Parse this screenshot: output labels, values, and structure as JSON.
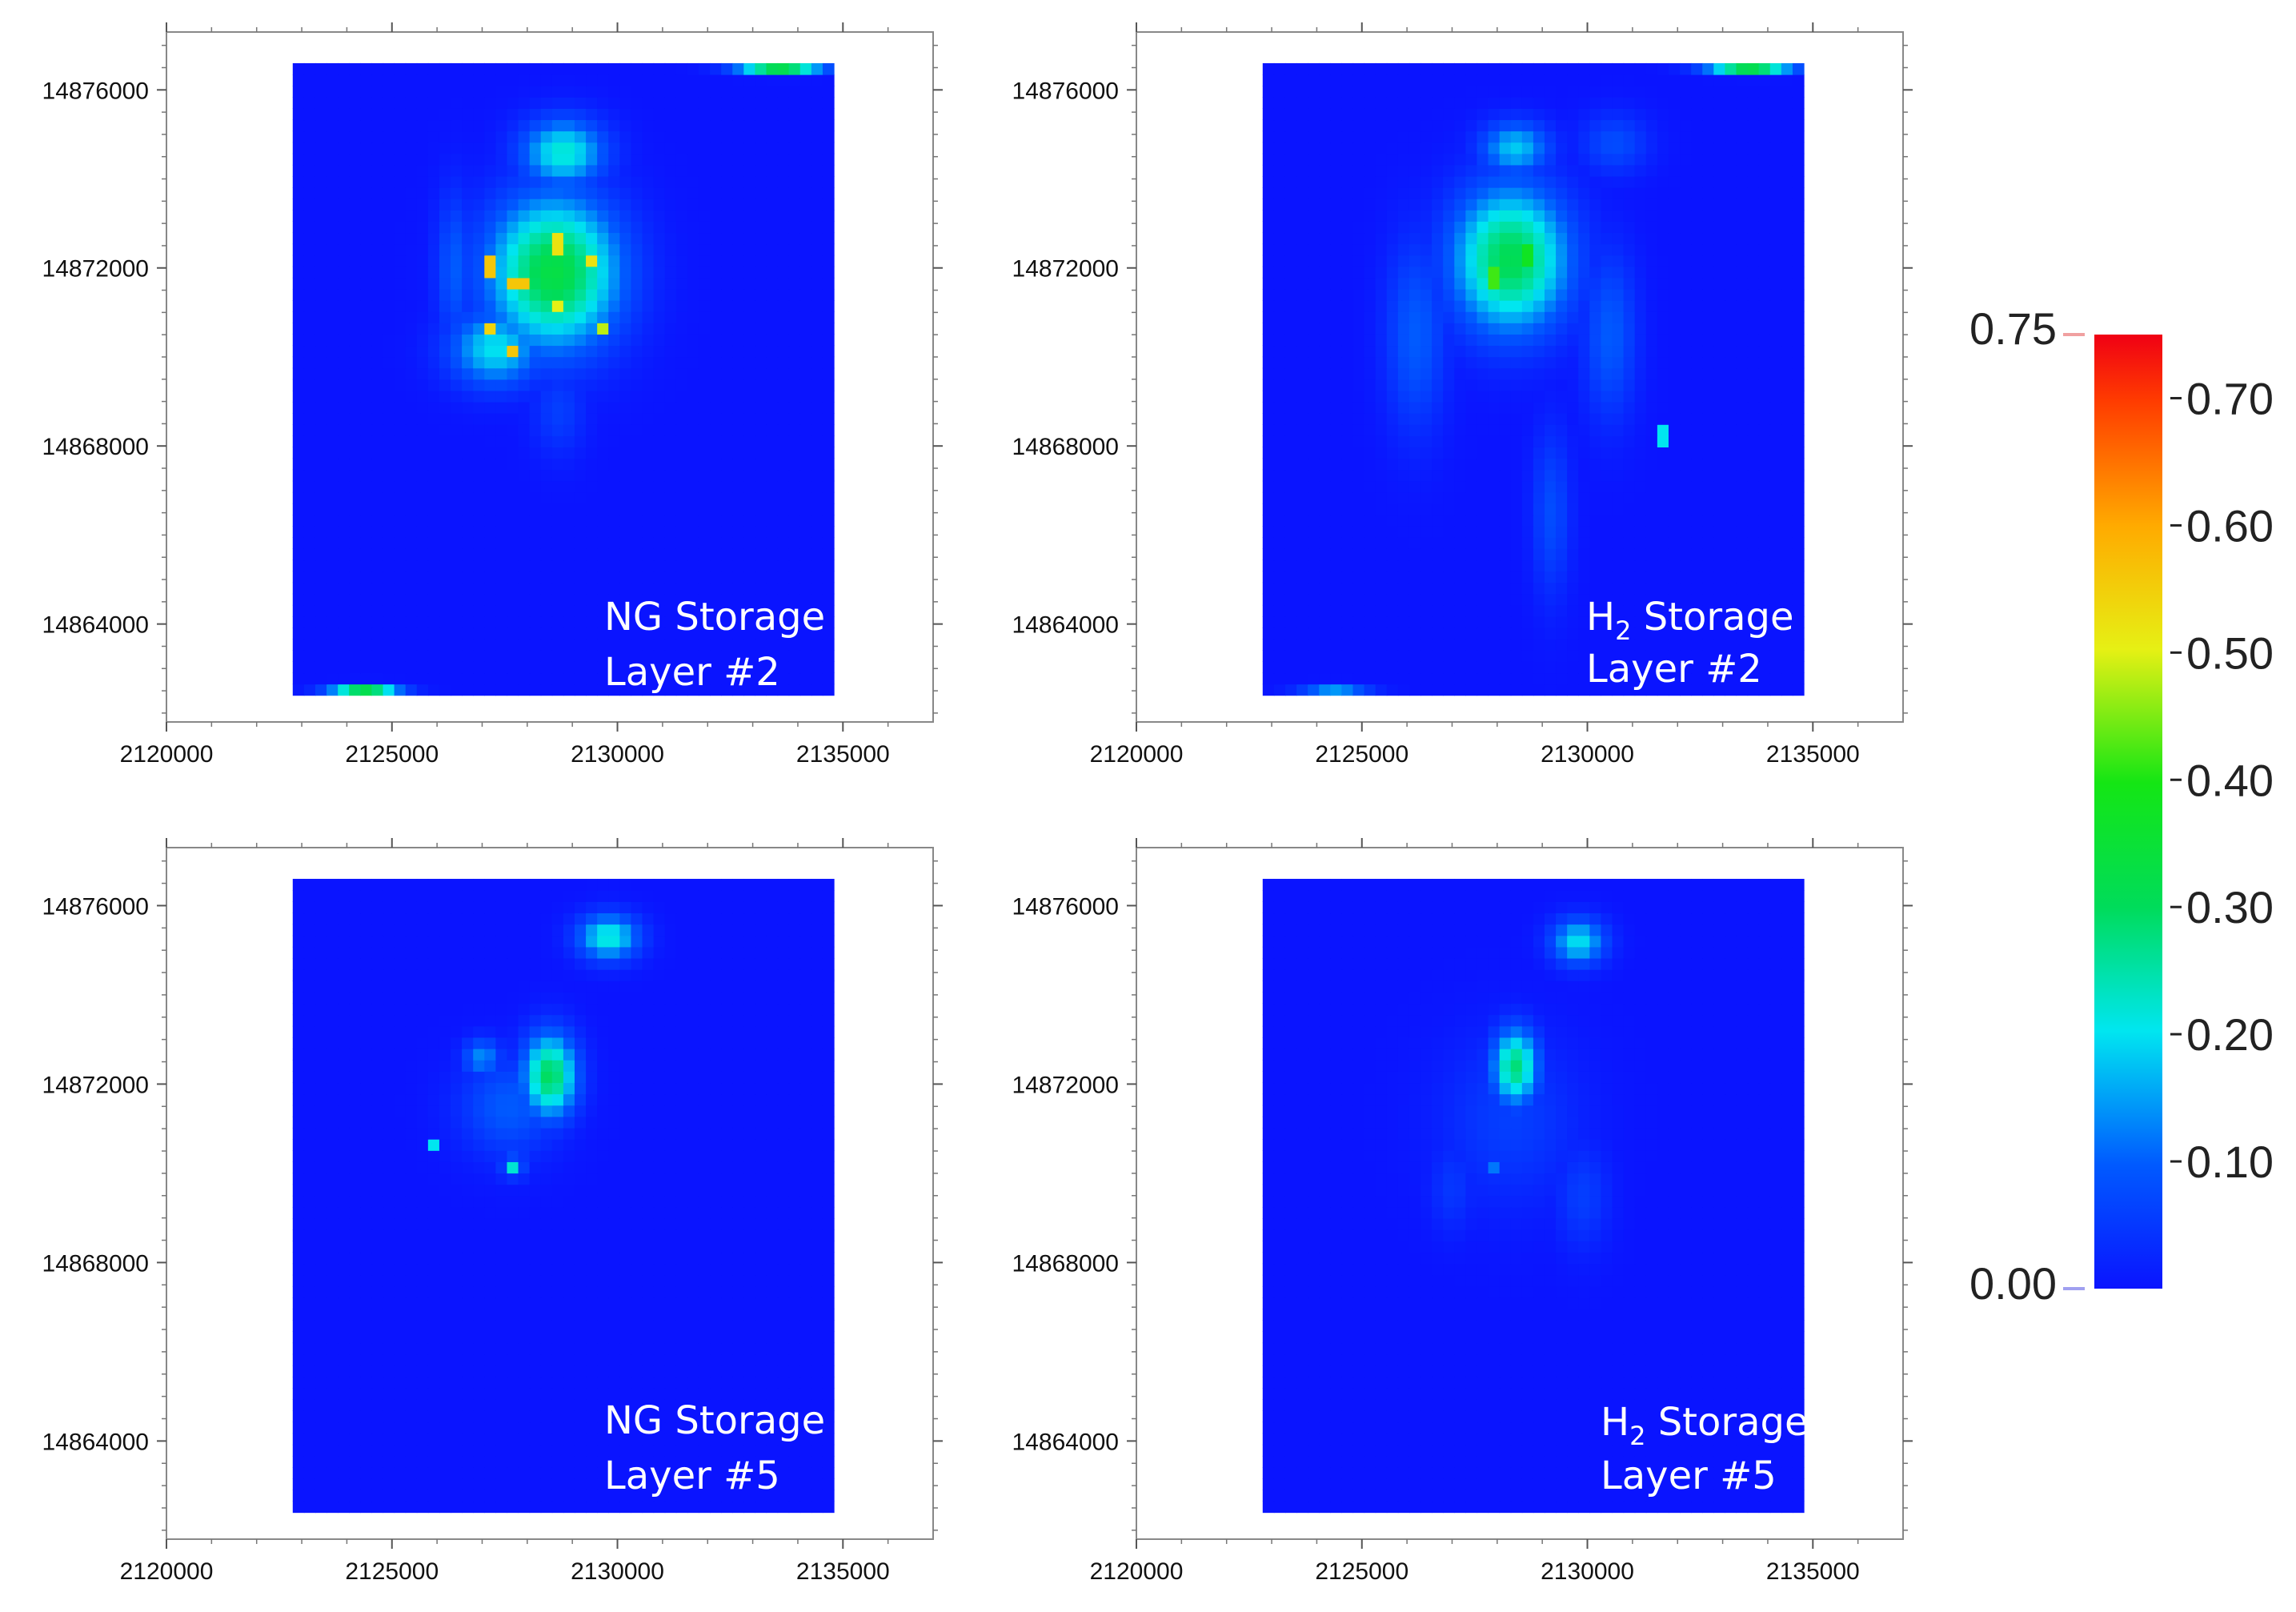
{
  "chart_data": {
    "type": "heatmap",
    "layout": "2x2 grid",
    "x_ticks": [
      "2120000",
      "2125000",
      "2130000",
      "2135000"
    ],
    "y_ticks": [
      "14876000",
      "14872000",
      "14868000",
      "14864000"
    ],
    "x_tick_values": [
      2120000,
      2125000,
      2130000,
      2135000
    ],
    "y_tick_values": [
      14876000,
      14872000,
      14868000,
      14864000
    ],
    "xlim": [
      2120000,
      2137000
    ],
    "ylim": [
      14861800,
      14877300
    ],
    "grid_extent": {
      "x": [
        2122800,
        2134800
      ],
      "y": [
        14862400,
        14876600
      ]
    },
    "grid_size": {
      "cols": 48,
      "rows": 56
    },
    "colorbar": {
      "min": 0.0,
      "max": 0.75,
      "min_label": "0.00",
      "max_label": "0.75",
      "ticks": [
        "0.70",
        "0.60",
        "0.50",
        "0.40",
        "0.30",
        "0.20",
        "0.10"
      ],
      "tick_values": [
        0.7,
        0.6,
        0.5,
        0.4,
        0.3,
        0.2,
        0.1
      ],
      "colormap": "rainbow (blue to red)"
    },
    "panels": [
      {
        "line1": "NG Storage",
        "line2": "Layer #2",
        "h2": false,
        "blobs": [
          {
            "x": 2128600,
            "y": 14871900,
            "sx": 1700,
            "sy": 2000,
            "v": 0.33
          },
          {
            "x": 2128800,
            "y": 14874600,
            "sx": 1100,
            "sy": 900,
            "v": 0.22
          },
          {
            "x": 2127300,
            "y": 14870200,
            "sx": 1200,
            "sy": 1000,
            "v": 0.2
          },
          {
            "x": 2126400,
            "y": 14872000,
            "sx": 500,
            "sy": 2000,
            "v": 0.1
          },
          {
            "x": 2128700,
            "y": 14868800,
            "sx": 700,
            "sy": 1200,
            "v": 0.06
          },
          {
            "x": 2130200,
            "y": 14870800,
            "sx": 600,
            "sy": 800,
            "v": 0.05
          },
          {
            "x": 2133600,
            "y": 14876500,
            "sx": 1100,
            "sy": 150,
            "v": 0.33
          },
          {
            "x": 2124400,
            "y": 14862500,
            "sx": 900,
            "sy": 150,
            "v": 0.33
          }
        ],
        "hotspots": [
          {
            "x": 2127100,
            "y": 14872000,
            "v": 0.56
          },
          {
            "x": 2127800,
            "y": 14871700,
            "v": 0.56
          },
          {
            "x": 2128700,
            "y": 14872500,
            "v": 0.52
          },
          {
            "x": 2129400,
            "y": 14872200,
            "v": 0.52
          },
          {
            "x": 2127100,
            "y": 14870700,
            "v": 0.54
          },
          {
            "x": 2127700,
            "y": 14870200,
            "v": 0.56
          },
          {
            "x": 2128700,
            "y": 14871100,
            "v": 0.5
          },
          {
            "x": 2129600,
            "y": 14870700,
            "v": 0.48
          }
        ]
      },
      {
        "line1": " Storage",
        "line2": "Layer #2",
        "h2": true,
        "blobs": [
          {
            "x": 2128300,
            "y": 14872200,
            "sx": 1500,
            "sy": 1900,
            "v": 0.31
          },
          {
            "x": 2128400,
            "y": 14874700,
            "sx": 900,
            "sy": 700,
            "v": 0.18
          },
          {
            "x": 2126200,
            "y": 14870500,
            "sx": 800,
            "sy": 2500,
            "v": 0.1
          },
          {
            "x": 2130500,
            "y": 14870500,
            "sx": 700,
            "sy": 2200,
            "v": 0.1
          },
          {
            "x": 2129200,
            "y": 14866500,
            "sx": 500,
            "sy": 2200,
            "v": 0.08
          },
          {
            "x": 2130600,
            "y": 14874800,
            "sx": 900,
            "sy": 800,
            "v": 0.08
          },
          {
            "x": 2133600,
            "y": 14876500,
            "sx": 1100,
            "sy": 150,
            "v": 0.33
          },
          {
            "x": 2124400,
            "y": 14862500,
            "sx": 900,
            "sy": 150,
            "v": 0.15
          }
        ],
        "hotspots": [
          {
            "x": 2128000,
            "y": 14871800,
            "v": 0.42
          },
          {
            "x": 2128600,
            "y": 14872300,
            "v": 0.38
          },
          {
            "x": 2131700,
            "y": 14868200,
            "v": 0.2
          }
        ]
      },
      {
        "line1": "NG Storage",
        "line2": "Layer #5",
        "h2": false,
        "blobs": [
          {
            "x": 2128500,
            "y": 14872200,
            "sx": 700,
            "sy": 1100,
            "v": 0.3
          },
          {
            "x": 2129800,
            "y": 14875300,
            "sx": 800,
            "sy": 600,
            "v": 0.22
          },
          {
            "x": 2127600,
            "y": 14871500,
            "sx": 1300,
            "sy": 1300,
            "v": 0.1
          },
          {
            "x": 2127000,
            "y": 14872600,
            "sx": 500,
            "sy": 500,
            "v": 0.14
          },
          {
            "x": 2127700,
            "y": 14870200,
            "sx": 400,
            "sy": 400,
            "v": 0.1
          }
        ],
        "hotspots": [
          {
            "x": 2126000,
            "y": 14870700,
            "v": 0.2
          },
          {
            "x": 2127700,
            "y": 14870100,
            "v": 0.22
          }
        ]
      },
      {
        "line1": " Storage",
        "line2": "Layer #5",
        "h2": true,
        "blobs": [
          {
            "x": 2128400,
            "y": 14872400,
            "sx": 600,
            "sy": 1000,
            "v": 0.28
          },
          {
            "x": 2129800,
            "y": 14875200,
            "sx": 700,
            "sy": 600,
            "v": 0.2
          },
          {
            "x": 2128300,
            "y": 14871200,
            "sx": 1800,
            "sy": 2200,
            "v": 0.06
          },
          {
            "x": 2129900,
            "y": 14869500,
            "sx": 700,
            "sy": 1400,
            "v": 0.06
          },
          {
            "x": 2127000,
            "y": 14869700,
            "sx": 600,
            "sy": 1200,
            "v": 0.05
          }
        ],
        "hotspots": [
          {
            "x": 2127900,
            "y": 14870100,
            "v": 0.12
          }
        ]
      }
    ]
  }
}
